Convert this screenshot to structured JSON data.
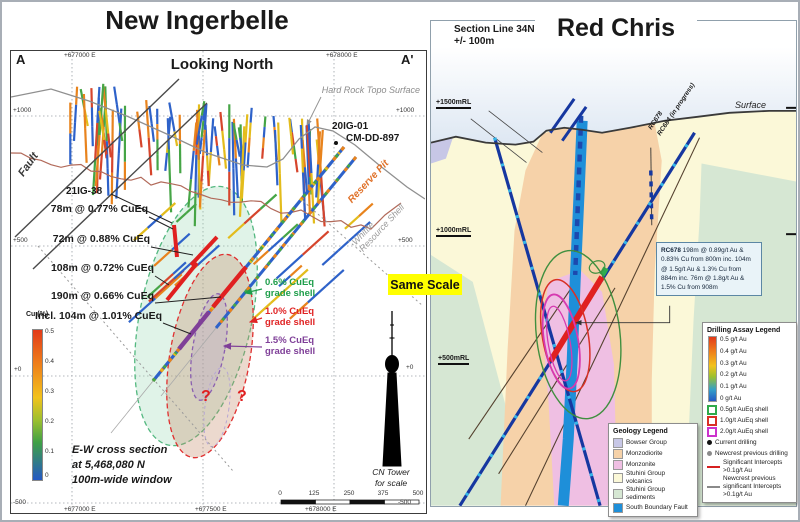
{
  "left": {
    "title": "New Ingerbelle",
    "view_label": "Looking North",
    "section_start": "A",
    "section_end": "A'",
    "topo_label": "Hard Rock Topo Surface",
    "fault_label": "Fault",
    "reserve_pit_label": "Reserve Pit",
    "whittle_line1": "Whittle",
    "whittle_line2": "Resource Shell",
    "hole_20ig01": "20IG-01",
    "hole_cmdd897": "CM-DD-897",
    "hole_21ig38": "21IG-38",
    "intercepts": [
      "78m @ 0.77% CuEq",
      "72m @ 0.88% CuEq",
      "108m @ 0.72% CuEq",
      "190m @ 0.66% CuEq",
      "Incl. 104m @ 1.01% CuEq"
    ],
    "shells": [
      {
        "line1": "0.6% CuEq",
        "line2": "grade shell",
        "color": "#1f9e4b"
      },
      {
        "line1": "1.0% CuEq",
        "line2": "grade shell",
        "color": "#e02425"
      },
      {
        "line1": "1.5% CuEq",
        "line2": "grade shell",
        "color": "#7f3f98"
      }
    ],
    "qmark": "?",
    "cu_legend": {
      "title": "Cu (%)",
      "ticks": [
        "0.5",
        "0.4",
        "0.3",
        "0.2",
        "0.1",
        "0"
      ]
    },
    "caption": [
      "E-W cross section",
      "at 5,468,080 N",
      "100m-wide window"
    ],
    "axis_top": [
      "+677000 E",
      "+678000 E"
    ],
    "axis_bottom": [
      "+677000 E",
      "+677500 E",
      "+678000 E"
    ],
    "elev_left": [
      "+1000",
      "+500",
      "+0",
      "-500"
    ],
    "elev_right": [
      "+1000",
      "+500",
      "+0",
      "-500"
    ],
    "scalebar": [
      "0",
      "125",
      "250",
      "375",
      "500"
    ],
    "cn_tower": [
      "CN Tower",
      "for scale"
    ]
  },
  "center": {
    "same_scale": "Same Scale"
  },
  "right": {
    "title": "Red Chris",
    "section_line1": "Section Line 34N",
    "section_line2": "+/- 100m",
    "surface_label": "Surface",
    "elevations": [
      "+1500mRL",
      "+1000mRL",
      "+500mRL"
    ],
    "hole_rc678": "RC678",
    "hole_rc684": "RC684 (in progress)",
    "annotation": {
      "code": "RC678",
      "text": " 198m @ 0.89g/t Au & 0.83% Cu from 800m inc. 104m @ 1.5g/t Au & 1.3% Cu from 884m inc. 76m @ 1.8g/t Au & 1.5% Cu from 908m"
    },
    "assay_legend": {
      "title": "Drilling Assay Legend",
      "ticks": [
        "0.5 g/t Au",
        "0.4 g/t Au",
        "0.3 g/t Au",
        "0.2 g/t Au",
        "0.1 g/t Au",
        "0    g/t Au"
      ],
      "shells": [
        {
          "label": "0.5g/t AuEq shell",
          "color": "#2faa4a"
        },
        {
          "label": "1.0g/t AuEq shell",
          "color": "#d93025"
        },
        {
          "label": "2.0g/t AuEq shell",
          "color": "#cc33cc"
        }
      ],
      "dots": [
        {
          "label": "Current drilling",
          "color": "#111111"
        },
        {
          "label": "Newcrest previous drilling",
          "color": "#8a8a8a"
        }
      ],
      "lines": [
        {
          "label": "Significant Intercepts >0.1g/t Au",
          "color": "#d62020"
        },
        {
          "label": "Newcrest previous significant Intercepts >0.1g/t Au",
          "color": "#8a8a8a"
        }
      ]
    },
    "geology_legend": {
      "title": "Geology Legend",
      "items": [
        {
          "label": "Bowser Group",
          "color": "#c7c7e6"
        },
        {
          "label": "Monzodiorite",
          "color": "#f6d2a9"
        },
        {
          "label": "Monzonite",
          "color": "#efbfe3"
        },
        {
          "label": "Stuhini Group volcanics",
          "color": "#fbf8d8"
        },
        {
          "label": "Stuhini Group sediments",
          "color": "#d6e7d3"
        },
        {
          "label": "South Boundary Fault",
          "color": "#1e8fd9"
        }
      ]
    }
  }
}
